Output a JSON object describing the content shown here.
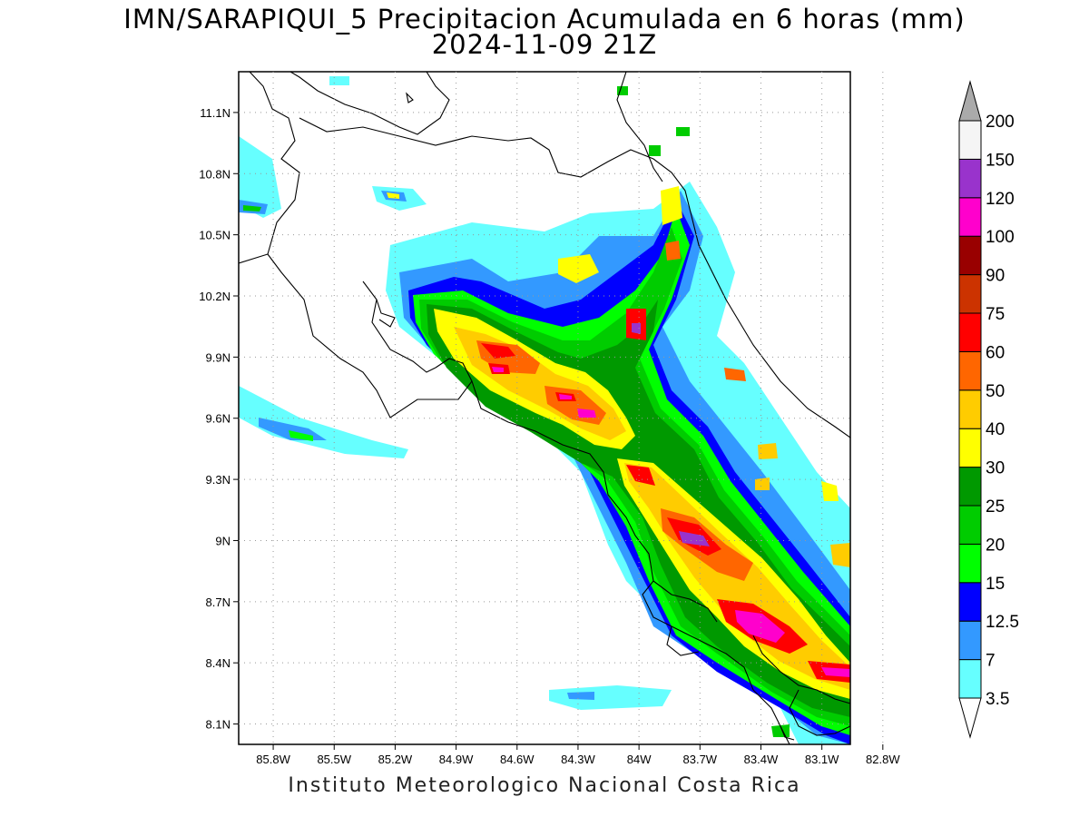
{
  "title": {
    "line1": "IMN/SARAPIQUI_5 Precipitacion Acumulada en 6 horas (mm)",
    "line2": "2024-11-09 21Z"
  },
  "footer": "Instituto Meteorologico Nacional Costa Rica",
  "map": {
    "lat_range": [
      8.0,
      11.3
    ],
    "lon_range": [
      -85.97,
      -82.96
    ],
    "lat_ticks": [
      "11.1N",
      "10.8N",
      "10.5N",
      "10.2N",
      "9.9N",
      "9.6N",
      "9.3N",
      "9N",
      "8.7N",
      "8.4N",
      "8.1N"
    ],
    "lon_ticks": [
      "85.8W",
      "85.5W",
      "85.2W",
      "84.9W",
      "84.6W",
      "84.3W",
      "84W",
      "83.7W",
      "83.4W",
      "83.1W",
      "82.8W"
    ],
    "grid": "dotted"
  },
  "colorbar": {
    "labels": [
      "3.5",
      "7",
      "12.5",
      "15",
      "20",
      "25",
      "30",
      "40",
      "50",
      "60",
      "75",
      "90",
      "100",
      "120",
      "150",
      "200"
    ],
    "colors": [
      "#66ffff",
      "#3399ff",
      "#0000ff",
      "#00ff00",
      "#00cc00",
      "#009900",
      "#ffff00",
      "#ffcc00",
      "#ff6600",
      "#ff0000",
      "#cc3300",
      "#990000",
      "#ff00cc",
      "#9933cc",
      "#f5f5f5"
    ],
    "upper_arrow_color": "#aaaaaa",
    "lower_arrow_color": "#ffffff"
  }
}
